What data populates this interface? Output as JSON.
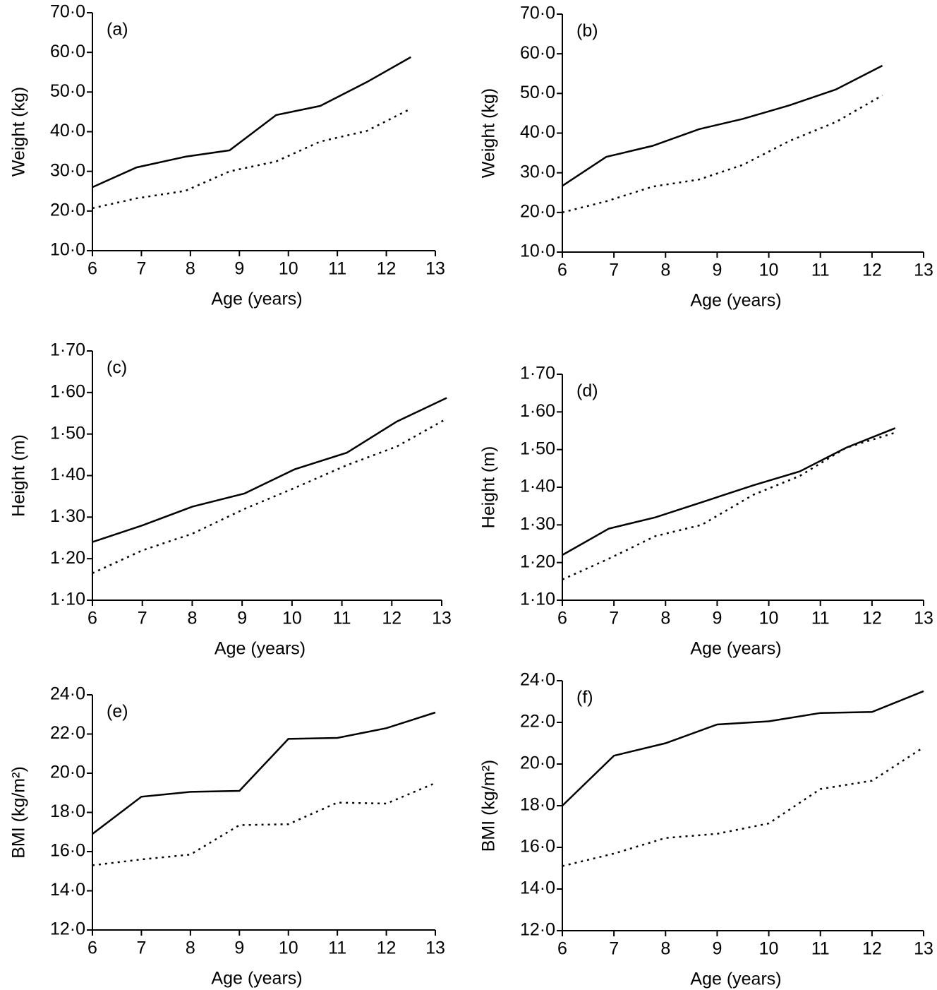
{
  "chart_data": [
    {
      "type": "line",
      "panel_label": "(a)",
      "x_label": "Age (years)",
      "y_label": "Weight (kg)",
      "xlim": [
        6,
        13
      ],
      "xticks": [
        6,
        7,
        8,
        9,
        10,
        11,
        12,
        13
      ],
      "ylim": [
        10,
        70
      ],
      "yticks": [
        {
          "value": 10,
          "label": "10·0"
        },
        {
          "value": 20,
          "label": "20·0"
        },
        {
          "value": 30,
          "label": "30·0"
        },
        {
          "value": 40,
          "label": "40·0"
        },
        {
          "value": 50,
          "label": "50·0"
        },
        {
          "value": 60,
          "label": "60·0"
        },
        {
          "value": 70,
          "label": "70·0"
        }
      ],
      "series": [
        {
          "color": "#000000",
          "line_style": "solid",
          "x": [
            6,
            6.9,
            7.9,
            8.8,
            9.75,
            10.65,
            11.6,
            12.5
          ],
          "values": [
            26,
            31,
            33.7,
            35.3,
            44.2,
            46.5,
            52.5,
            58.8
          ]
        },
        {
          "color": "#000000",
          "line_style": "dotted",
          "x": [
            6,
            6.9,
            7.9,
            8.8,
            9.75,
            10.65,
            11.6,
            12.5
          ],
          "values": [
            20.7,
            23.2,
            25.1,
            30,
            32.5,
            37.5,
            40.2,
            45.8
          ]
        }
      ]
    },
    {
      "type": "line",
      "panel_label": "(b)",
      "x_label": "Age (years)",
      "y_label": "Weight (kg)",
      "xlim": [
        6,
        13
      ],
      "xticks": [
        6,
        7,
        8,
        9,
        10,
        11,
        12,
        13
      ],
      "ylim": [
        10,
        70
      ],
      "yticks": [
        {
          "value": 10,
          "label": "10·0"
        },
        {
          "value": 20,
          "label": "20·0"
        },
        {
          "value": 30,
          "label": "30·0"
        },
        {
          "value": 40,
          "label": "40·0"
        },
        {
          "value": 50,
          "label": "50·0"
        },
        {
          "value": 60,
          "label": "60·0"
        },
        {
          "value": 70,
          "label": "70·0"
        }
      ],
      "series": [
        {
          "color": "#000000",
          "line_style": "solid",
          "x": [
            6,
            6.85,
            7.75,
            8.65,
            9.5,
            10.4,
            11.3,
            12.2
          ],
          "values": [
            26.7,
            34,
            36.8,
            41,
            43.6,
            47,
            51,
            57
          ]
        },
        {
          "color": "#000000",
          "line_style": "dotted",
          "x": [
            6,
            6.85,
            7.75,
            8.65,
            9.5,
            10.4,
            11.3,
            12.2
          ],
          "values": [
            20,
            22.8,
            26.5,
            28.3,
            32,
            38,
            42.8,
            49.5
          ]
        }
      ]
    },
    {
      "type": "line",
      "panel_label": "(c)",
      "x_label": "Age (years)",
      "y_label": "Height (m)",
      "xlim": [
        6,
        13
      ],
      "xticks": [
        6,
        7,
        8,
        9,
        10,
        11,
        12,
        13
      ],
      "ylim": [
        1.1,
        1.7
      ],
      "yticks": [
        {
          "value": 1.1,
          "label": "1·10"
        },
        {
          "value": 1.2,
          "label": "1·20"
        },
        {
          "value": 1.3,
          "label": "1·30"
        },
        {
          "value": 1.4,
          "label": "1·40"
        },
        {
          "value": 1.5,
          "label": "1·50"
        },
        {
          "value": 1.6,
          "label": "1·60"
        },
        {
          "value": 1.7,
          "label": "1·70"
        }
      ],
      "series": [
        {
          "color": "#000000",
          "line_style": "solid",
          "x": [
            6,
            7,
            8,
            9.05,
            10.05,
            11.1,
            12.1,
            13.1
          ],
          "values": [
            1.24,
            1.28,
            1.325,
            1.357,
            1.415,
            1.455,
            1.53,
            1.587
          ]
        },
        {
          "color": "#000000",
          "line_style": "dotted",
          "x": [
            6,
            7,
            8,
            9.05,
            10.05,
            11.1,
            12.1,
            13.1
          ],
          "values": [
            1.165,
            1.22,
            1.26,
            1.32,
            1.37,
            1.425,
            1.47,
            1.537
          ]
        }
      ]
    },
    {
      "type": "line",
      "panel_label": "(d)",
      "x_label": "Age (years)",
      "y_label": "Height (m)",
      "xlim": [
        6,
        13
      ],
      "xticks": [
        6,
        7,
        8,
        9,
        10,
        11,
        12,
        13
      ],
      "ylim": [
        1.1,
        1.7
      ],
      "yticks": [
        {
          "value": 1.1,
          "label": "1·10"
        },
        {
          "value": 1.2,
          "label": "1·20"
        },
        {
          "value": 1.3,
          "label": "1·30"
        },
        {
          "value": 1.4,
          "label": "1·40"
        },
        {
          "value": 1.5,
          "label": "1·50"
        },
        {
          "value": 1.6,
          "label": "1·60"
        },
        {
          "value": 1.7,
          "label": "1·70"
        }
      ],
      "series": [
        {
          "color": "#000000",
          "line_style": "solid",
          "x": [
            6,
            6.9,
            7.8,
            8.7,
            9.7,
            10.6,
            11.5,
            12.45
          ],
          "values": [
            1.22,
            1.29,
            1.32,
            1.36,
            1.405,
            1.442,
            1.505,
            1.557
          ]
        },
        {
          "color": "#000000",
          "line_style": "dotted",
          "x": [
            6,
            6.9,
            7.8,
            8.7,
            9.7,
            10.6,
            11.5,
            12.45
          ],
          "values": [
            1.155,
            1.21,
            1.27,
            1.3,
            1.38,
            1.43,
            1.505,
            1.545
          ]
        }
      ]
    },
    {
      "type": "line",
      "panel_label": "(e)",
      "x_label": "Age (years)",
      "y_label": "BMI (kg/m²)",
      "xlim": [
        6,
        13
      ],
      "xticks": [
        6,
        7,
        8,
        9,
        10,
        11,
        12,
        13
      ],
      "ylim": [
        12,
        24
      ],
      "yticks": [
        {
          "value": 12,
          "label": "12·0"
        },
        {
          "value": 14,
          "label": "14·0"
        },
        {
          "value": 16,
          "label": "16·0"
        },
        {
          "value": 18,
          "label": "18·0"
        },
        {
          "value": 20,
          "label": "20·0"
        },
        {
          "value": 22,
          "label": "22·0"
        },
        {
          "value": 24,
          "label": "24·0"
        }
      ],
      "series": [
        {
          "color": "#000000",
          "line_style": "solid",
          "x": [
            6,
            7,
            8,
            9,
            10,
            11,
            12,
            13
          ],
          "values": [
            16.9,
            18.8,
            19.05,
            19.1,
            21.75,
            21.8,
            22.3,
            23.1
          ]
        },
        {
          "color": "#000000",
          "line_style": "dotted",
          "x": [
            6,
            7,
            8,
            9,
            10,
            11,
            12,
            13
          ],
          "values": [
            15.3,
            15.6,
            15.85,
            17.35,
            17.4,
            18.5,
            18.45,
            19.5
          ]
        }
      ]
    },
    {
      "type": "line",
      "panel_label": "(f)",
      "x_label": "Age (years)",
      "y_label": "BMI (kg/m²)",
      "xlim": [
        6,
        13
      ],
      "xticks": [
        6,
        7,
        8,
        9,
        10,
        11,
        12,
        13
      ],
      "ylim": [
        12,
        24
      ],
      "yticks": [
        {
          "value": 12,
          "label": "12·0"
        },
        {
          "value": 14,
          "label": "14·0"
        },
        {
          "value": 16,
          "label": "16·0"
        },
        {
          "value": 18,
          "label": "18·0"
        },
        {
          "value": 20,
          "label": "20·0"
        },
        {
          "value": 22,
          "label": "22·0"
        },
        {
          "value": 24,
          "label": "24·0"
        }
      ],
      "series": [
        {
          "color": "#000000",
          "line_style": "solid",
          "x": [
            6,
            7,
            8,
            9,
            10,
            11,
            12,
            13
          ],
          "values": [
            18,
            20.4,
            21,
            21.9,
            22.05,
            22.45,
            22.5,
            23.5
          ]
        },
        {
          "color": "#000000",
          "line_style": "dotted",
          "x": [
            6,
            7,
            8,
            9,
            10,
            11,
            12,
            13
          ],
          "values": [
            15.1,
            15.7,
            16.45,
            16.65,
            17.15,
            18.8,
            19.2,
            20.8
          ]
        }
      ]
    }
  ]
}
